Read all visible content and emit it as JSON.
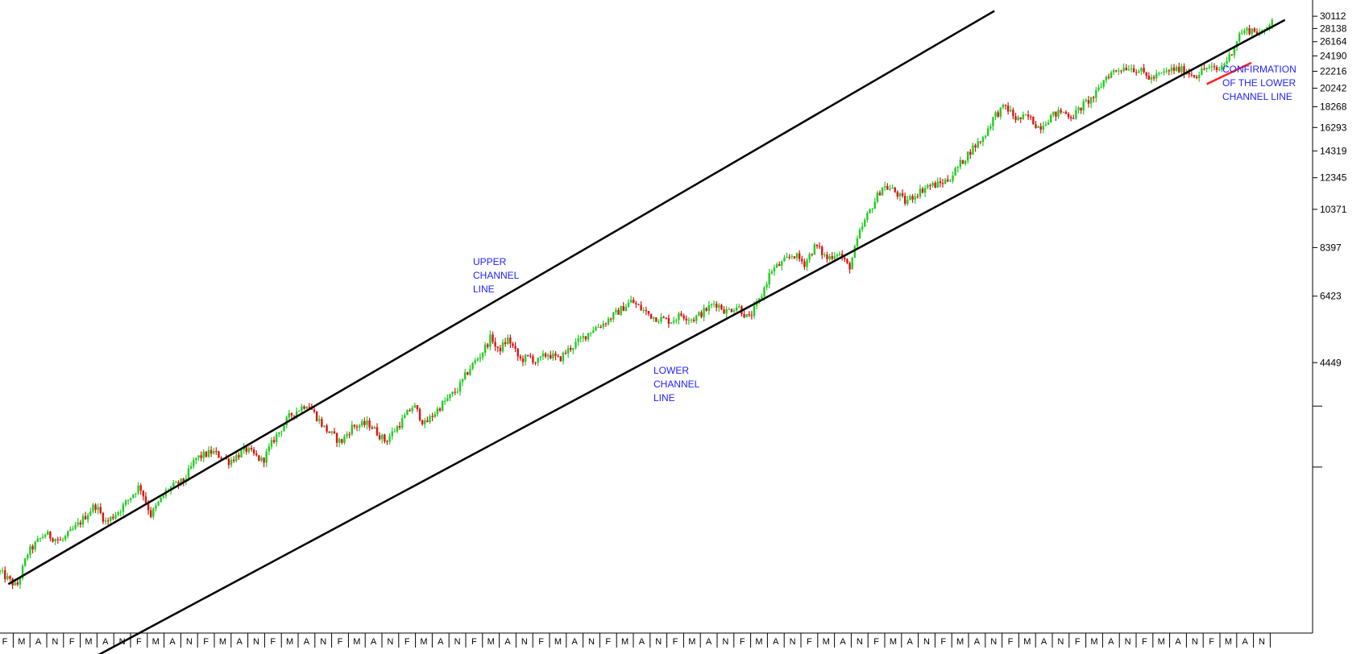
{
  "chart_data": {
    "type": "candlestick",
    "title": "",
    "xlabel": "",
    "ylabel": "",
    "y_scale": "log",
    "ylim": [
      1000,
      31500
    ],
    "y_ticks": [
      30112,
      28138,
      26164,
      24190,
      22216,
      20242,
      18268,
      16293,
      14319,
      12345,
      10371,
      8397,
      6423,
      4449
    ],
    "y_axis_side": "right",
    "up_color": "#22cc22",
    "down_color": "#dd1111",
    "line_color": "#000000",
    "highlight_color": "#ff2222",
    "annotation_color": "#1f1fff",
    "x_tick_labels": [
      "F",
      "M",
      "A",
      "N",
      "F",
      "M",
      "A",
      "N",
      "F",
      "M",
      "A",
      "N",
      "F",
      "M",
      "A",
      "N",
      "F",
      "M",
      "A",
      "N",
      "F",
      "M",
      "A",
      "N",
      "F",
      "M",
      "A",
      "N",
      "F",
      "M",
      "A",
      "N",
      "F",
      "M",
      "A",
      "N",
      "F",
      "M",
      "A",
      "N",
      "F",
      "M",
      "A",
      "N",
      "F",
      "M",
      "A",
      "N",
      "F",
      "M",
      "A",
      "N",
      "F",
      "M",
      "A",
      "N",
      "F",
      "M",
      "A",
      "N",
      "F",
      "M",
      "A",
      "N",
      "F",
      "M",
      "A",
      "N",
      "F",
      "M",
      "A",
      "N",
      "F",
      "M",
      "A",
      "N"
    ],
    "price_path": [
      [
        0,
        1400
      ],
      [
        3,
        1290
      ],
      [
        5,
        1560
      ],
      [
        8,
        1730
      ],
      [
        11,
        1660
      ],
      [
        14,
        1820
      ],
      [
        17,
        2030
      ],
      [
        19,
        1840
      ],
      [
        22,
        2010
      ],
      [
        25,
        2260
      ],
      [
        27,
        1920
      ],
      [
        30,
        2210
      ],
      [
        33,
        2320
      ],
      [
        35,
        2620
      ],
      [
        38,
        2720
      ],
      [
        41,
        2580
      ],
      [
        44,
        2760
      ],
      [
        47,
        2580
      ],
      [
        49,
        2910
      ],
      [
        52,
        3330
      ],
      [
        55,
        3560
      ],
      [
        58,
        3110
      ],
      [
        61,
        2860
      ],
      [
        63,
        3120
      ],
      [
        66,
        3180
      ],
      [
        69,
        2880
      ],
      [
        72,
        3230
      ],
      [
        74,
        3520
      ],
      [
        76,
        3160
      ],
      [
        79,
        3520
      ],
      [
        82,
        3850
      ],
      [
        84,
        4300
      ],
      [
        86,
        4640
      ],
      [
        88,
        5150
      ],
      [
        89,
        4720
      ],
      [
        91,
        5080
      ],
      [
        93,
        4520
      ],
      [
        95,
        4590
      ],
      [
        96,
        4450
      ],
      [
        98,
        4680
      ],
      [
        100,
        4520
      ],
      [
        102,
        4820
      ],
      [
        104,
        5050
      ],
      [
        106,
        5350
      ],
      [
        108,
        5520
      ],
      [
        110,
        5800
      ],
      [
        113,
        6250
      ],
      [
        115,
        5950
      ],
      [
        117,
        5720
      ],
      [
        120,
        5600
      ],
      [
        122,
        5800
      ],
      [
        124,
        5650
      ],
      [
        126,
        5900
      ],
      [
        128,
        6200
      ],
      [
        130,
        5900
      ],
      [
        132,
        6100
      ],
      [
        134,
        5650
      ],
      [
        136,
        6300
      ],
      [
        138,
        7400
      ],
      [
        140,
        7700
      ],
      [
        142,
        8100
      ],
      [
        144,
        7700
      ],
      [
        146,
        8500
      ],
      [
        148,
        7900
      ],
      [
        150,
        8200
      ],
      [
        152,
        7500
      ],
      [
        154,
        9200
      ],
      [
        156,
        10500
      ],
      [
        158,
        11800
      ],
      [
        160,
        11500
      ],
      [
        162,
        10800
      ],
      [
        164,
        11300
      ],
      [
        166,
        11800
      ],
      [
        168,
        11900
      ],
      [
        170,
        12300
      ],
      [
        172,
        13400
      ],
      [
        174,
        14500
      ],
      [
        176,
        15400
      ],
      [
        178,
        17400
      ],
      [
        180,
        18300
      ],
      [
        182,
        17000
      ],
      [
        184,
        17300
      ],
      [
        186,
        16300
      ],
      [
        188,
        17300
      ],
      [
        190,
        17800
      ],
      [
        192,
        17300
      ],
      [
        194,
        18500
      ],
      [
        196,
        19400
      ],
      [
        198,
        21600
      ],
      [
        200,
        22500
      ],
      [
        202,
        22800
      ],
      [
        204,
        22300
      ],
      [
        206,
        21300
      ],
      [
        208,
        21900
      ],
      [
        210,
        22500
      ],
      [
        212,
        22300
      ],
      [
        214,
        21700
      ],
      [
        216,
        22700
      ],
      [
        218,
        22300
      ],
      [
        220,
        24000
      ],
      [
        222,
        27500
      ],
      [
        224,
        28000
      ],
      [
        226,
        27200
      ],
      [
        228,
        30400
      ]
    ],
    "channel_lines": [
      {
        "name": "upper",
        "from": [
          1.5,
          1310
        ],
        "to": [
          178,
          31000
        ]
      },
      {
        "name": "lower",
        "from": [
          14,
          835
        ],
        "to": [
          230,
          29500
        ]
      },
      {
        "name": "confirmation",
        "from": [
          216,
          20700
        ],
        "to": [
          224,
          23300
        ]
      }
    ],
    "annotations": {
      "upper": [
        "UPPER",
        "CHANNEL",
        "LINE"
      ],
      "lower": [
        "LOWER",
        "CHANNEL",
        "LINE"
      ],
      "confirmation": [
        "CONFIRMATION",
        "OF THE LOWER",
        "CHANNEL LINE"
      ]
    }
  }
}
